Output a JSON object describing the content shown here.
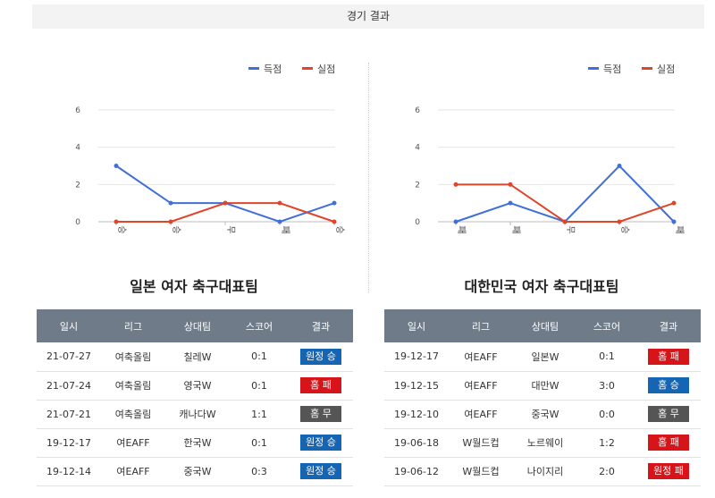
{
  "header": {
    "title": "경기 결과"
  },
  "legend": {
    "scored": "득점",
    "conceded": "실점"
  },
  "colors": {
    "scored": "#3f6fd8",
    "conceded": "#e0452a",
    "win": "#1565b5",
    "loss": "#d7141a",
    "draw": "#555555"
  },
  "chart_data": [
    {
      "type": "line",
      "categories": [
        "승",
        "승",
        "무",
        "패",
        "승"
      ],
      "series": [
        {
          "name": "득점",
          "values": [
            3,
            1,
            1,
            0,
            1
          ]
        },
        {
          "name": "실점",
          "values": [
            0,
            0,
            1,
            1,
            0
          ]
        }
      ],
      "yticks": [
        "0",
        "2",
        "4",
        "6"
      ],
      "ylim": [
        0,
        6
      ],
      "grid": true,
      "legend_position": "top-right"
    },
    {
      "type": "line",
      "categories": [
        "패",
        "패",
        "무",
        "승",
        "패"
      ],
      "series": [
        {
          "name": "득점",
          "values": [
            0,
            1,
            0,
            3,
            0
          ]
        },
        {
          "name": "실점",
          "values": [
            2,
            2,
            0,
            0,
            1
          ]
        }
      ],
      "yticks": [
        "0",
        "2",
        "4",
        "6"
      ],
      "ylim": [
        0,
        6
      ],
      "grid": true,
      "legend_position": "top-right"
    }
  ],
  "teams": [
    {
      "name": "일본 여자 축구대표팀",
      "columns": [
        "일시",
        "리그",
        "상대팀",
        "스코어",
        "결과"
      ],
      "rows": [
        {
          "date": "21-07-27",
          "league": "여축올림",
          "opponent": "칠레W",
          "score": "0:1",
          "result": "원정 승",
          "kind": "win"
        },
        {
          "date": "21-07-24",
          "league": "여축올림",
          "opponent": "영국W",
          "score": "0:1",
          "result": "홈 패",
          "kind": "loss"
        },
        {
          "date": "21-07-21",
          "league": "여축올림",
          "opponent": "캐나다W",
          "score": "1:1",
          "result": "홈 무",
          "kind": "draw"
        },
        {
          "date": "19-12-17",
          "league": "여EAFF",
          "opponent": "한국W",
          "score": "0:1",
          "result": "원정 승",
          "kind": "win"
        },
        {
          "date": "19-12-14",
          "league": "여EAFF",
          "opponent": "중국W",
          "score": "0:3",
          "result": "원정 승",
          "kind": "win"
        }
      ]
    },
    {
      "name": "대한민국 여자 축구대표팀",
      "columns": [
        "일시",
        "리그",
        "상대팀",
        "스코어",
        "결과"
      ],
      "rows": [
        {
          "date": "19-12-17",
          "league": "여EAFF",
          "opponent": "일본W",
          "score": "0:1",
          "result": "홈 패",
          "kind": "loss"
        },
        {
          "date": "19-12-15",
          "league": "여EAFF",
          "opponent": "대만W",
          "score": "3:0",
          "result": "홈 승",
          "kind": "win"
        },
        {
          "date": "19-12-10",
          "league": "여EAFF",
          "opponent": "중국W",
          "score": "0:0",
          "result": "홈 무",
          "kind": "draw"
        },
        {
          "date": "19-06-18",
          "league": "W월드컵",
          "opponent": "노르웨이",
          "score": "1:2",
          "result": "홈 패",
          "kind": "loss"
        },
        {
          "date": "19-06-12",
          "league": "W월드컵",
          "opponent": "나이지리",
          "score": "2:0",
          "result": "원정 패",
          "kind": "loss"
        }
      ]
    }
  ]
}
